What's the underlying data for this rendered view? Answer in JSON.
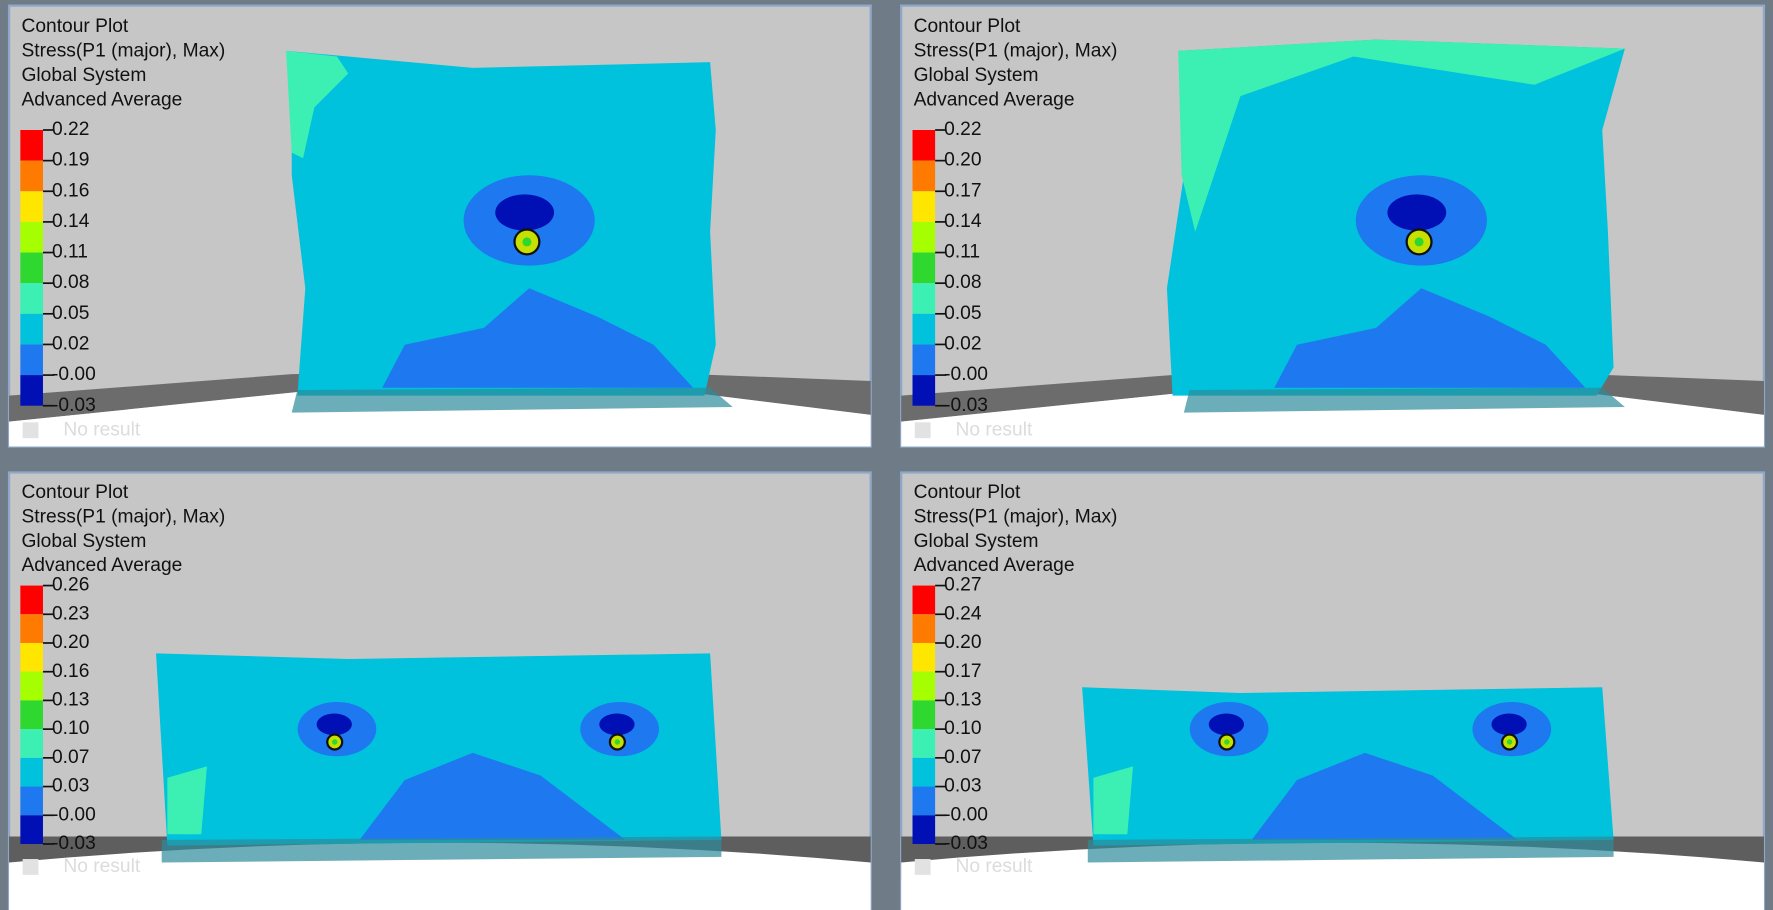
{
  "panels": [
    {
      "lines": [
        "Contour Plot",
        "Stress(P1 (major), Max)",
        "Global System",
        "Advanced Average"
      ],
      "legend": [
        "0.22",
        "0.19",
        "0.16",
        "0.14",
        "0.11",
        "0.08",
        "0.05",
        "0.02",
        "-0.00",
        "-0.03"
      ],
      "no_result": "No result"
    },
    {
      "lines": [
        "Contour Plot",
        "Stress(P1 (major), Max)",
        "Global System",
        "Advanced Average"
      ],
      "legend": [
        "0.22",
        "0.20",
        "0.17",
        "0.14",
        "0.11",
        "0.08",
        "0.05",
        "0.02",
        "-0.00",
        "-0.03"
      ],
      "no_result": "No result"
    },
    {
      "lines": [
        "Contour Plot",
        "Stress(P1 (major), Max)",
        "Global System",
        "Advanced Average"
      ],
      "legend": [
        "0.26",
        "0.23",
        "0.20",
        "0.16",
        "0.13",
        "0.10",
        "0.07",
        "0.03",
        "-0.00",
        "-0.03"
      ],
      "no_result": "No result"
    },
    {
      "lines": [
        "Contour Plot",
        "Stress(P1 (major), Max)",
        "Global System",
        "Advanced Average"
      ],
      "legend": [
        "0.27",
        "0.24",
        "0.20",
        "0.17",
        "0.13",
        "0.10",
        "0.07",
        "0.03",
        "-0.00",
        "-0.03"
      ],
      "no_result": "No result"
    }
  ]
}
